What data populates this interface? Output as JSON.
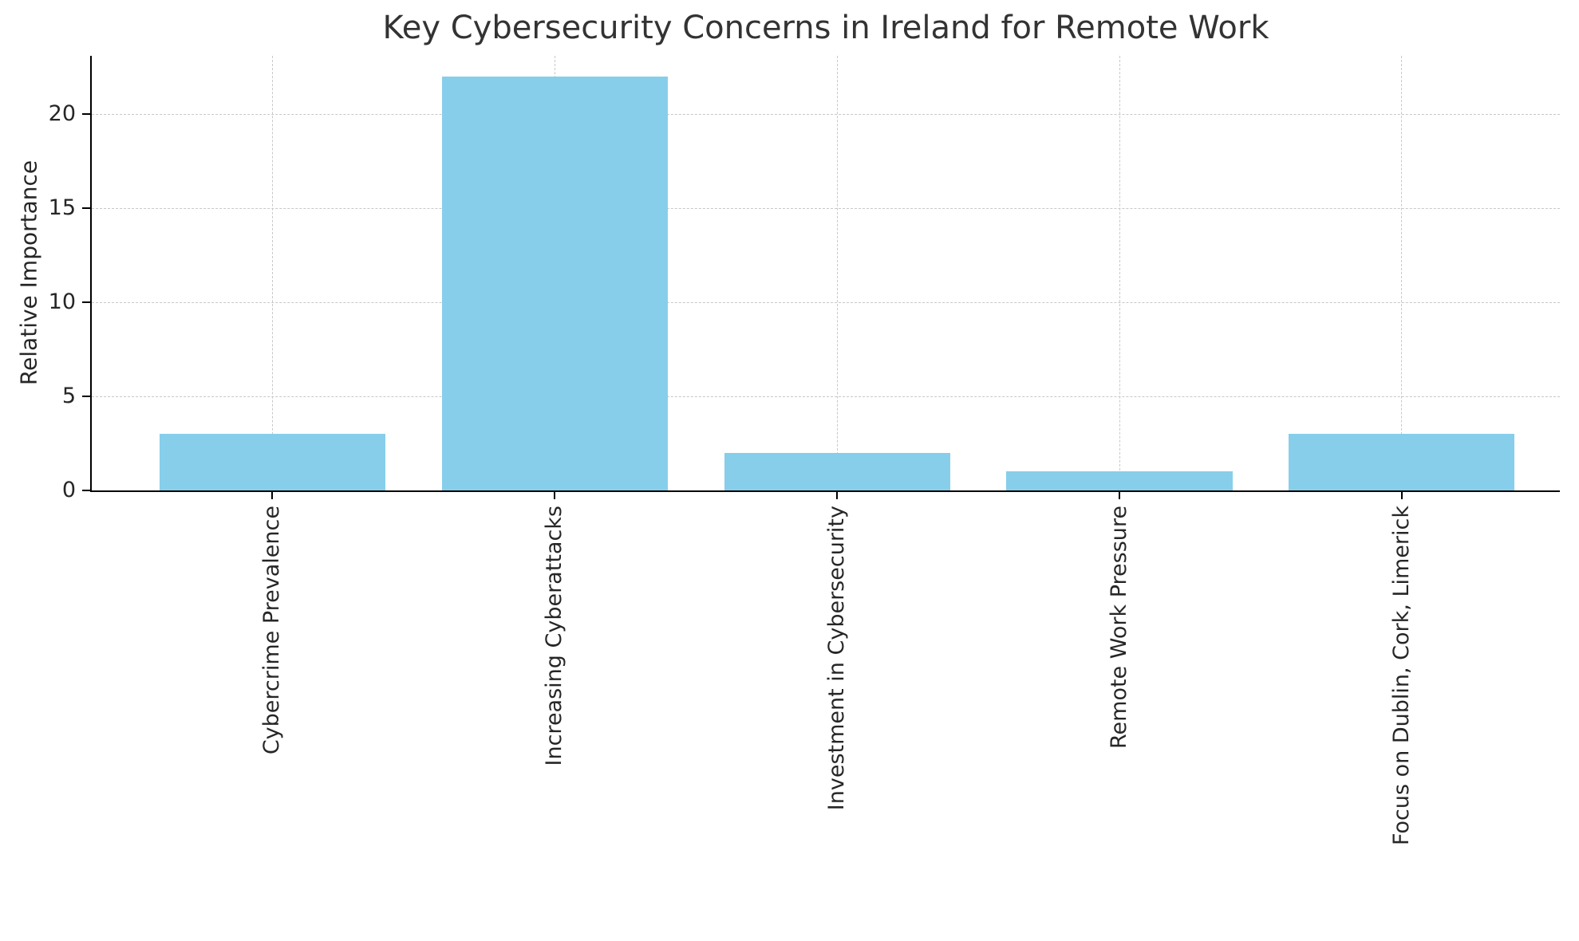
{
  "figure": {
    "background": "#ffffff"
  },
  "chart_data": {
    "type": "bar",
    "title": "Key Cybersecurity Concerns in Ireland for Remote Work",
    "xlabel": "",
    "ylabel": "Relative Importance",
    "categories": [
      "Cybercrime Prevalence",
      "Increasing Cyberattacks",
      "Investment in Cybersecurity",
      "Remote Work Pressure",
      "Focus on Dublin, Cork, Limerick"
    ],
    "values": [
      3,
      22,
      2,
      1,
      3
    ],
    "yticks": [
      0,
      5,
      10,
      15,
      20
    ],
    "ylim": [
      0,
      23.1
    ],
    "xtick_rotation": 90,
    "grid": true,
    "grid_style": "dashed",
    "legend": "none",
    "colors": {
      "bar": "#87CEEB",
      "grid": "#c8c8c8",
      "text": "#262626",
      "title": "#333333",
      "spine": "#000000"
    }
  }
}
